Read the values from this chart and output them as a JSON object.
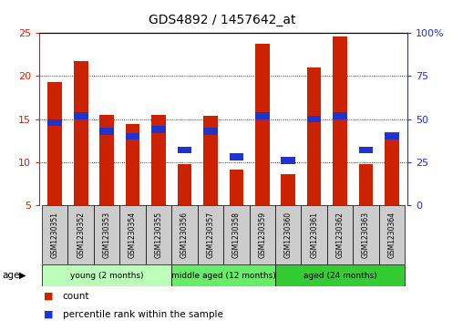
{
  "title": "GDS4892 / 1457642_at",
  "samples": [
    "GSM1230351",
    "GSM1230352",
    "GSM1230353",
    "GSM1230354",
    "GSM1230355",
    "GSM1230356",
    "GSM1230357",
    "GSM1230358",
    "GSM1230359",
    "GSM1230360",
    "GSM1230361",
    "GSM1230362",
    "GSM1230363",
    "GSM1230364"
  ],
  "count_values": [
    19.3,
    21.8,
    15.5,
    14.4,
    15.5,
    9.8,
    15.4,
    9.1,
    23.8,
    8.6,
    21.0,
    24.6,
    9.8,
    13.5
  ],
  "percentile_values": [
    48,
    52,
    43,
    40,
    44,
    32,
    43,
    28,
    52,
    26,
    50,
    52,
    32,
    40
  ],
  "ylim_left": [
    5,
    25
  ],
  "ylim_right": [
    0,
    100
  ],
  "yticks_left": [
    5,
    10,
    15,
    20,
    25
  ],
  "yticks_right": [
    0,
    25,
    50,
    75,
    100
  ],
  "bar_color": "#cc2200",
  "percentile_color": "#2233cc",
  "bar_bottom": 5,
  "groups": [
    {
      "label": "young (2 months)",
      "start": 0,
      "end": 5,
      "color": "#bbffbb"
    },
    {
      "label": "middle aged (12 months)",
      "start": 5,
      "end": 9,
      "color": "#66ee66"
    },
    {
      "label": "aged (24 months)",
      "start": 9,
      "end": 14,
      "color": "#33cc33"
    }
  ],
  "age_label": "age",
  "legend_count_label": "count",
  "legend_percentile_label": "percentile rank within the sample",
  "left_axis_color": "#cc2200",
  "right_axis_color": "#2233cc",
  "grid_color": "black",
  "tick_label_bg": "#cccccc",
  "figure_bg": "#ffffff"
}
